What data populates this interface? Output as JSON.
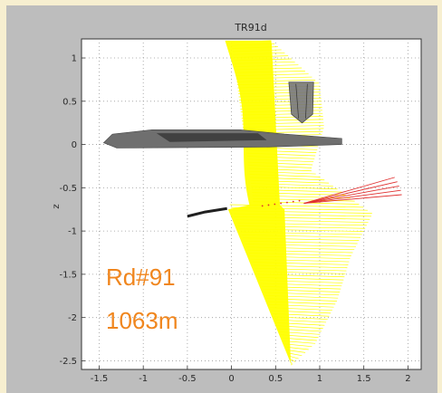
{
  "chart_data": {
    "type": "line",
    "title": "TR91d",
    "xlabel": "",
    "ylabel": "z",
    "xlim": [
      -1.7,
      2.15
    ],
    "ylim": [
      -2.6,
      1.22
    ],
    "xticks": [
      -1.5,
      -1,
      -0.5,
      0,
      0.5,
      1,
      1.5,
      2
    ],
    "xtick_labels": [
      "-1.5",
      "-1",
      "-0.5",
      "0",
      "0.5",
      "1",
      "1.5",
      "2"
    ],
    "yticks": [
      1,
      0.5,
      0,
      -0.5,
      -1,
      -1.5,
      -2,
      -2.5
    ],
    "ytick_labels": [
      "1",
      "0.5",
      "0",
      "-0.5",
      "-1",
      "-1.5",
      "-2",
      "-2.5"
    ],
    "grid": true,
    "annotations": [
      "Rd#91",
      "1063m"
    ],
    "colors": {
      "rays": "#ffff00",
      "red_rays": "#e03030",
      "body": "#6f6f6f",
      "dark": "#202020",
      "grid": "#9a9a9a",
      "annotation": "#f0861e"
    },
    "ray_source": {
      "x": 0.25,
      "z": -0.72
    },
    "fan_upper_endpoint": {
      "x": 0.25,
      "z": 1.2
    },
    "fan_lower_endpoint": {
      "x": 0.68,
      "z": -2.55
    },
    "fan_right_edge": [
      {
        "z": 1.2,
        "x": 0.45
      },
      {
        "z": 0.7,
        "x": 1.0
      },
      {
        "z": 0.2,
        "x": 1.05
      },
      {
        "z": -0.3,
        "x": 0.9
      },
      {
        "z": -0.8,
        "x": 1.6
      },
      {
        "z": -1.3,
        "x": 1.35
      },
      {
        "z": -1.8,
        "x": 1.2
      },
      {
        "z": -2.3,
        "x": 0.95
      },
      {
        "z": -2.55,
        "x": 0.68
      }
    ],
    "red_rays_targets": [
      {
        "x": 1.85,
        "z": -0.38
      },
      {
        "x": 1.88,
        "z": -0.43
      },
      {
        "x": 1.9,
        "z": -0.48
      },
      {
        "x": 1.92,
        "z": -0.53
      },
      {
        "x": 1.93,
        "z": -0.58
      }
    ],
    "red_rays_source": {
      "x": 0.82,
      "z": -0.68
    },
    "hull": [
      {
        "x": -1.45,
        "z": 0.02
      },
      {
        "x": -1.35,
        "z": 0.12
      },
      {
        "x": -0.9,
        "z": 0.17
      },
      {
        "x": 0.1,
        "z": 0.17
      },
      {
        "x": 0.6,
        "z": 0.12
      },
      {
        "x": 1.25,
        "z": 0.07
      },
      {
        "x": 1.25,
        "z": 0.0
      },
      {
        "x": 0.4,
        "z": -0.03
      },
      {
        "x": -1.3,
        "z": -0.04
      }
    ],
    "hull_dark": [
      {
        "x": -0.85,
        "z": 0.13
      },
      {
        "x": 0.3,
        "z": 0.13
      },
      {
        "x": 0.4,
        "z": 0.05
      },
      {
        "x": -0.7,
        "z": 0.03
      }
    ],
    "box_shape": [
      {
        "x": 0.65,
        "z": 0.72
      },
      {
        "x": 0.93,
        "z": 0.72
      },
      {
        "x": 0.92,
        "z": 0.35
      },
      {
        "x": 0.8,
        "z": 0.25
      },
      {
        "x": 0.68,
        "z": 0.35
      }
    ],
    "dark_segment": [
      {
        "x": -0.5,
        "z": -0.83
      },
      {
        "x": -0.3,
        "z": -0.78
      },
      {
        "x": -0.05,
        "z": -0.74
      }
    ]
  }
}
